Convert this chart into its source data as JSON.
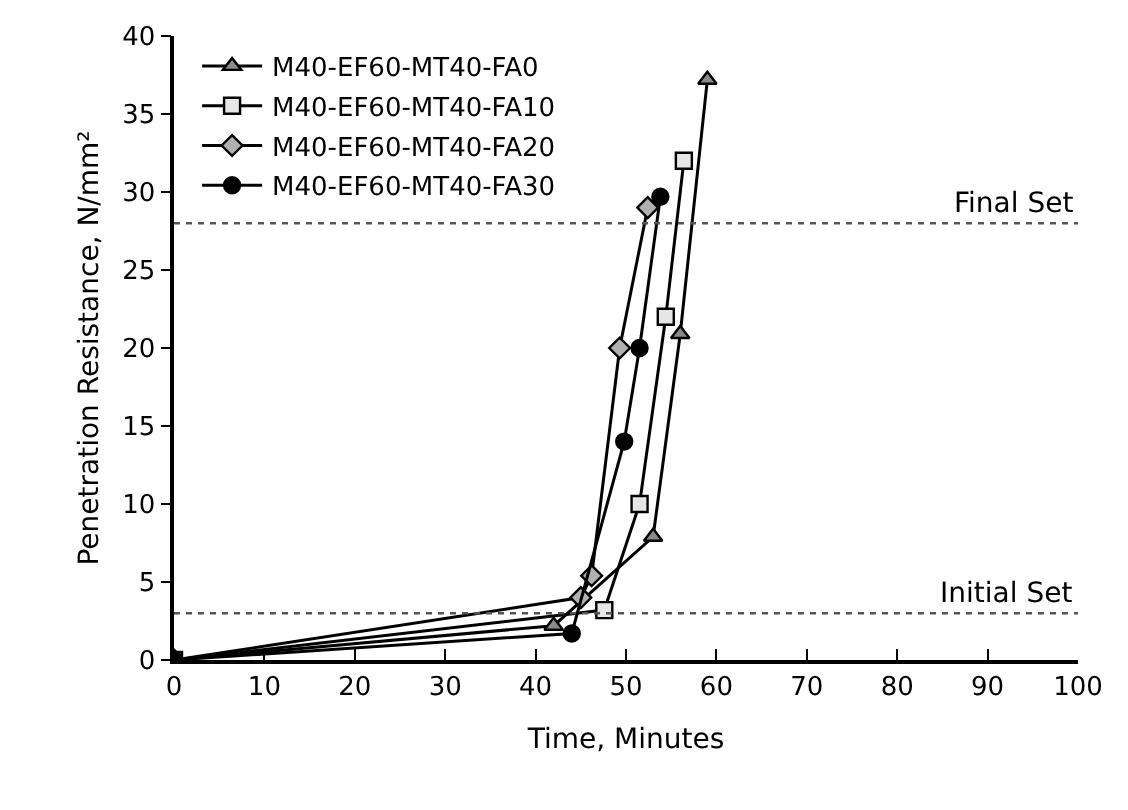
{
  "chart_data": {
    "type": "line",
    "xlabel": "Time, Minutes",
    "ylabel": "Penetration Resistance, N/mm²",
    "xlim": [
      0,
      100
    ],
    "ylim": [
      0,
      40
    ],
    "xticks": [
      0,
      10,
      20,
      30,
      40,
      50,
      60,
      70,
      80,
      90,
      100
    ],
    "yticks": [
      0,
      5,
      10,
      15,
      20,
      25,
      30,
      35,
      40
    ],
    "grid": false,
    "legend": "top left",
    "series": [
      {
        "name": "M40-EF60-MT40-FA0",
        "color": "#8a8a8a",
        "marker": "triangle",
        "x": [
          0,
          42,
          53,
          56,
          59
        ],
        "values": [
          0,
          2.2,
          7.9,
          20.9,
          37.2
        ]
      },
      {
        "name": "M40-EF60-MT40-FA10",
        "color": "#e6e6e6",
        "marker": "square",
        "x": [
          0,
          47.6,
          51.5,
          54.4,
          56.4
        ],
        "values": [
          0,
          3.2,
          10,
          22,
          32
        ]
      },
      {
        "name": "M40-EF60-MT40-FA20",
        "color": "#b0b0b0",
        "marker": "diamond",
        "x": [
          0,
          45,
          46.2,
          49.3,
          52.4
        ],
        "values": [
          0,
          4,
          5.4,
          20,
          29
        ]
      },
      {
        "name": "M40-EF60-MT40-FA30",
        "color": "#000000",
        "marker": "circle",
        "x": [
          0,
          44,
          49.8,
          51.5,
          53.8
        ],
        "values": [
          0,
          1.7,
          14,
          20,
          29.7
        ]
      }
    ],
    "ref_lines": [
      {
        "axis": "y",
        "value": 28,
        "label": "Final Set",
        "color": "#555555",
        "line_style": "dotted"
      },
      {
        "axis": "y",
        "value": 3,
        "label": "Initial Set",
        "color": "#555555",
        "line_style": "dotted"
      }
    ]
  }
}
